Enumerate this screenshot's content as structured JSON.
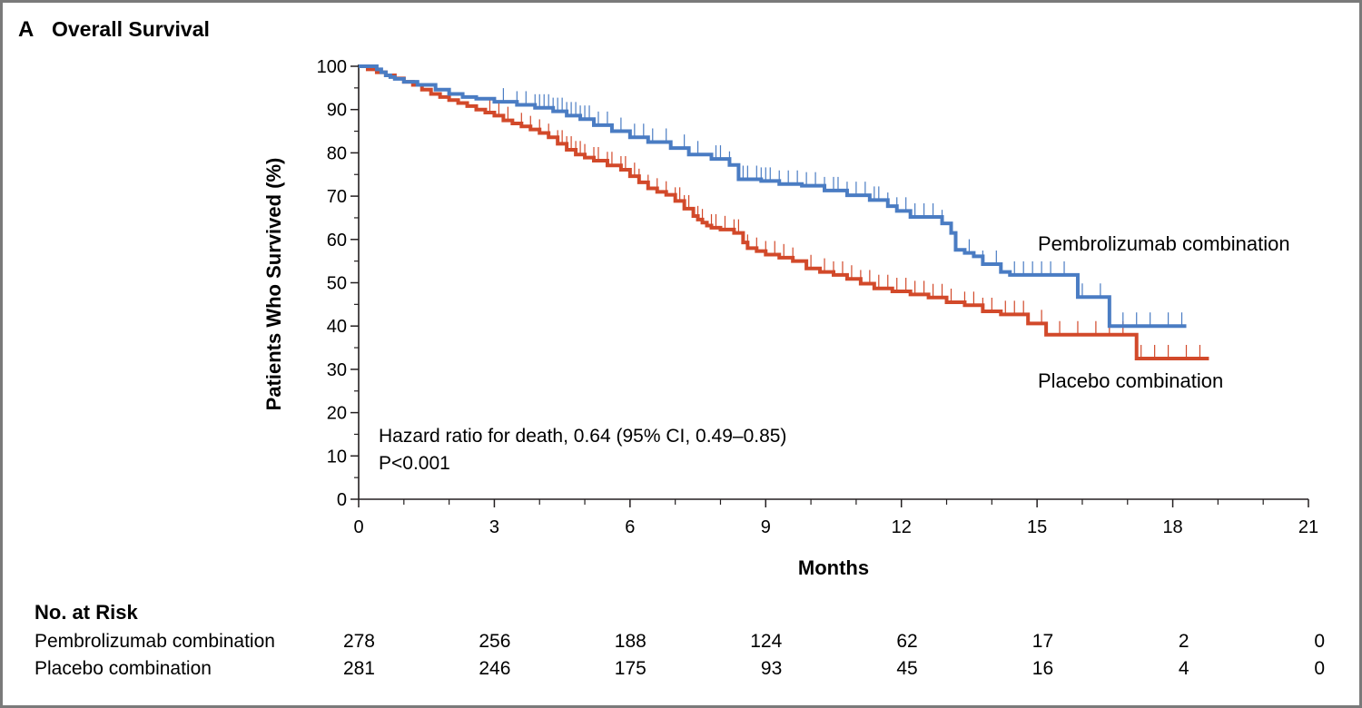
{
  "panel": {
    "letter": "A",
    "title": "Overall Survival"
  },
  "chart_data": {
    "type": "line",
    "title": "Overall Survival",
    "xlabel": "Months",
    "ylabel": "Patients Who Survived (%)",
    "xlim": [
      0,
      21
    ],
    "ylim": [
      0,
      100
    ],
    "xticks": [
      0,
      3,
      6,
      9,
      12,
      15,
      18,
      21
    ],
    "yticks": [
      0,
      10,
      20,
      30,
      40,
      50,
      60,
      70,
      80,
      90,
      100
    ],
    "grid": false,
    "series": [
      {
        "name": "Pembrolizumab combination",
        "color": "#4a7cc3",
        "step_x": [
          0,
          0.4,
          0.5,
          0.6,
          0.7,
          0.8,
          1.0,
          1.3,
          1.7,
          2.0,
          2.3,
          2.6,
          3.0,
          3.5,
          3.9,
          4.3,
          4.6,
          4.9,
          5.2,
          5.6,
          6.0,
          6.4,
          6.9,
          7.3,
          7.8,
          8.2,
          8.4,
          8.9,
          9.3,
          9.8,
          10.3,
          10.8,
          11.3,
          11.7,
          11.9,
          12.2,
          12.6,
          12.9,
          13.1,
          13.2,
          13.4,
          13.6,
          13.8,
          14.0,
          14.2,
          14.4,
          14.6,
          15.2,
          15.9,
          16.6,
          18.3
        ],
        "step_y": [
          100,
          99.3,
          98.6,
          97.9,
          97.5,
          97.1,
          96.4,
          95.7,
          94.6,
          93.6,
          92.9,
          92.5,
          91.8,
          91.1,
          90.4,
          89.6,
          88.6,
          87.8,
          86.4,
          85.0,
          83.6,
          82.5,
          81.1,
          79.6,
          78.6,
          77.2,
          73.9,
          73.5,
          72.8,
          72.4,
          71.3,
          70.2,
          69.1,
          67.7,
          66.6,
          65.2,
          65.2,
          63.7,
          61.5,
          57.6,
          56.9,
          56.1,
          54.3,
          54.3,
          52.5,
          51.8,
          51.8,
          51.8,
          46.7,
          40.0,
          40.0
        ],
        "censor_x": [
          3.2,
          3.5,
          3.7,
          3.9,
          4.0,
          4.1,
          4.2,
          4.3,
          4.4,
          4.5,
          4.6,
          4.7,
          4.8,
          4.9,
          5.0,
          5.1,
          5.3,
          5.5,
          5.8,
          6.1,
          6.3,
          6.5,
          6.8,
          7.2,
          7.5,
          7.9,
          8.0,
          8.2,
          8.5,
          8.6,
          8.8,
          8.9,
          9.0,
          9.1,
          9.3,
          9.5,
          9.7,
          9.9,
          10.1,
          10.3,
          10.5,
          10.6,
          10.8,
          11.0,
          11.2,
          11.4,
          11.5,
          11.7,
          11.9,
          12.1,
          12.3,
          12.5,
          12.7,
          12.9,
          13.2,
          13.5,
          13.8,
          14.1,
          14.5,
          14.7,
          14.9,
          15.1,
          15.3,
          15.6,
          16.0,
          16.4,
          16.9,
          17.2,
          17.5,
          17.9,
          18.2
        ]
      },
      {
        "name": "Placebo combination",
        "color": "#d2492a",
        "step_x": [
          0,
          0.2,
          0.4,
          0.6,
          0.8,
          1.0,
          1.2,
          1.4,
          1.6,
          1.8,
          2.0,
          2.2,
          2.4,
          2.6,
          2.8,
          3.0,
          3.2,
          3.4,
          3.6,
          3.8,
          4.0,
          4.2,
          4.4,
          4.6,
          4.8,
          5.0,
          5.2,
          5.5,
          5.8,
          6.0,
          6.2,
          6.4,
          6.6,
          6.8,
          7.0,
          7.2,
          7.4,
          7.5,
          7.6,
          7.7,
          7.8,
          8.0,
          8.3,
          8.5,
          8.6,
          8.8,
          9.0,
          9.3,
          9.6,
          9.9,
          10.2,
          10.5,
          10.8,
          11.1,
          11.4,
          11.8,
          12.2,
          12.6,
          13.0,
          13.4,
          13.8,
          14.2,
          14.8,
          15.2,
          15.9,
          16.6,
          17.2,
          18.8
        ],
        "step_y": [
          100,
          99.3,
          98.6,
          97.9,
          97.2,
          96.4,
          95.7,
          94.6,
          93.6,
          92.9,
          92.2,
          91.5,
          90.8,
          90.0,
          89.3,
          88.6,
          87.5,
          86.8,
          86.1,
          85.4,
          84.6,
          83.6,
          82.1,
          80.7,
          79.6,
          78.9,
          78.2,
          77.1,
          76.1,
          74.6,
          73.2,
          71.8,
          71.0,
          70.3,
          68.9,
          67.1,
          65.4,
          64.6,
          63.9,
          63.2,
          62.7,
          62.3,
          61.5,
          59.3,
          58.0,
          57.3,
          56.5,
          55.8,
          55.0,
          53.3,
          52.5,
          51.8,
          50.9,
          49.8,
          48.7,
          48.0,
          47.3,
          46.6,
          45.5,
          44.8,
          43.4,
          42.7,
          40.6,
          38.0,
          38.0,
          38.0,
          32.5,
          32.5
        ],
        "censor_x": [
          2.9,
          3.1,
          3.3,
          3.6,
          3.8,
          4.0,
          4.2,
          4.4,
          4.5,
          4.6,
          4.7,
          4.8,
          4.9,
          5.0,
          5.2,
          5.3,
          5.5,
          5.6,
          5.8,
          5.9,
          6.1,
          6.2,
          6.4,
          6.6,
          6.8,
          7.0,
          7.1,
          7.2,
          7.3,
          7.5,
          7.6,
          7.8,
          7.9,
          8.1,
          8.3,
          8.4,
          8.6,
          8.8,
          9.0,
          9.2,
          9.4,
          9.6,
          10.0,
          10.3,
          10.5,
          10.7,
          10.9,
          11.1,
          11.3,
          11.5,
          11.7,
          11.9,
          12.1,
          12.3,
          12.5,
          12.7,
          12.9,
          13.1,
          13.4,
          13.6,
          13.8,
          14.0,
          14.3,
          14.5,
          14.7,
          15.1,
          15.5,
          15.9,
          16.3,
          16.6,
          16.9,
          17.3,
          17.6,
          17.9,
          18.3,
          18.6
        ]
      }
    ],
    "annotations": [
      "Hazard ratio for death, 0.64 (95% CI, 0.49–0.85)",
      "P<0.001"
    ]
  },
  "risk_table": {
    "title": "No. at Risk",
    "rows": [
      {
        "label": "Pembrolizumab combination",
        "values": [
          "278",
          "256",
          "188",
          "124",
          "62",
          "17",
          "2",
          "0"
        ]
      },
      {
        "label": "Placebo combination",
        "values": [
          "281",
          "246",
          "175",
          "93",
          "45",
          "16",
          "4",
          "0"
        ]
      }
    ]
  }
}
